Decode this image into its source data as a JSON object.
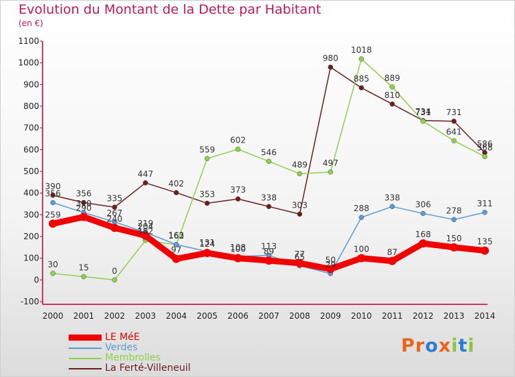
{
  "title": "Evolution du Montant de la Dette par Habitant",
  "unit": "(en €)",
  "logo": {
    "text": "Proxiti",
    "colors": [
      "#e8661c",
      "#e8661c",
      "#2a7fd4",
      "#e8661c",
      "#8bc53f",
      "#2a7fd4",
      "#8bc53f"
    ]
  },
  "chart_data": {
    "type": "line",
    "x": [
      2000,
      2001,
      2002,
      2003,
      2004,
      2005,
      2006,
      2007,
      2008,
      2009,
      2010,
      2011,
      2012,
      2013,
      2014
    ],
    "y_ticks": [
      -100,
      0,
      100,
      200,
      300,
      400,
      500,
      600,
      700,
      800,
      900,
      1000,
      1100
    ],
    "ylim": [
      -100,
      1100
    ],
    "grid": false,
    "legend_position": "bottom-left",
    "series": [
      {
        "name": "LE MéE",
        "color": "#f00000",
        "values": [
          259,
          290,
          240,
          204,
          97,
          124,
          100,
          89,
          77,
          50,
          100,
          87,
          168,
          150,
          135
        ]
      },
      {
        "name": "Verdes",
        "color": "#5b9bd5",
        "values": [
          356,
          310,
          267,
          219,
          163,
          131,
          108,
          113,
          65,
          29,
          288,
          338,
          306,
          278,
          311
        ]
      },
      {
        "name": "Membrolles",
        "color": "#8ed04f",
        "values": [
          30,
          15,
          0,
          182,
          162,
          559,
          602,
          546,
          489,
          497,
          1018,
          889,
          731,
          641,
          568
        ]
      },
      {
        "name": "La Ferté-Villeneuil",
        "color": "#6b1e1e",
        "values": [
          390,
          356,
          335,
          447,
          402,
          353,
          373,
          338,
          303,
          980,
          885,
          810,
          734,
          731,
          586
        ]
      }
    ]
  }
}
